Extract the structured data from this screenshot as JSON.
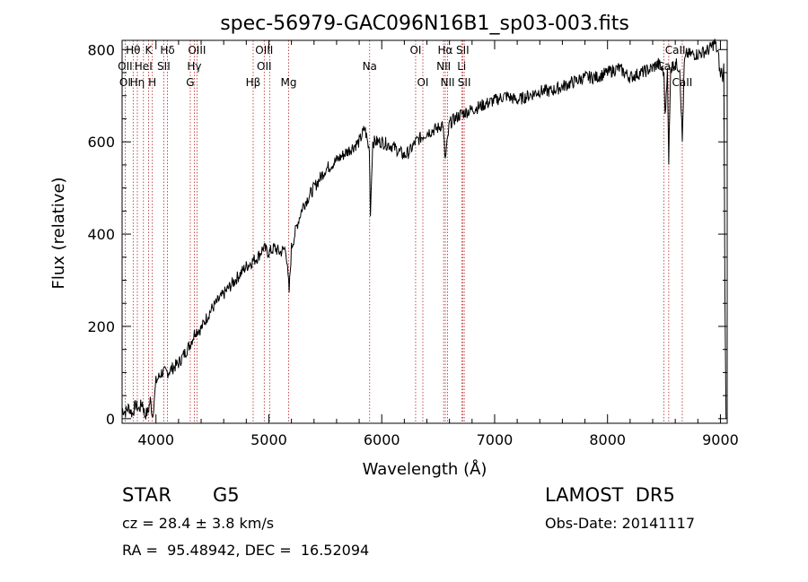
{
  "chart_data": {
    "type": "line",
    "title": "spec-56979-GAC096N16B1_sp03-003.fits",
    "xlabel": "Wavelength (Å)",
    "ylabel": "Flux (relative)",
    "xlim": [
      3700,
      9060
    ],
    "ylim": [
      -10,
      820
    ],
    "xticks": [
      4000,
      5000,
      6000,
      7000,
      8000,
      9000
    ],
    "yticks": [
      0,
      200,
      400,
      600,
      800
    ],
    "grid": false,
    "line_color": "#000000",
    "marker_line_color": "#b22222",
    "series": [
      {
        "values": [
          [
            3700,
            20
          ],
          [
            3730,
            15
          ],
          [
            3760,
            25
          ],
          [
            3790,
            10
          ],
          [
            3820,
            30
          ],
          [
            3850,
            20
          ],
          [
            3880,
            35
          ],
          [
            3900,
            8
          ],
          [
            3930,
            15
          ],
          [
            3950,
            40
          ],
          [
            3970,
            5
          ],
          [
            4000,
            80
          ],
          [
            4050,
            100
          ],
          [
            4100,
            100
          ],
          [
            4150,
            110
          ],
          [
            4200,
            120
          ],
          [
            4250,
            140
          ],
          [
            4300,
            160
          ],
          [
            4350,
            190
          ],
          [
            4400,
            195
          ],
          [
            4450,
            220
          ],
          [
            4500,
            240
          ],
          [
            4600,
            270
          ],
          [
            4700,
            300
          ],
          [
            4800,
            330
          ],
          [
            4900,
            350
          ],
          [
            4950,
            370
          ],
          [
            5000,
            360
          ],
          [
            5050,
            370
          ],
          [
            5100,
            360
          ],
          [
            5150,
            370
          ],
          [
            5180,
            275
          ],
          [
            5200,
            370
          ],
          [
            5250,
            420
          ],
          [
            5300,
            460
          ],
          [
            5400,
            500
          ],
          [
            5500,
            540
          ],
          [
            5600,
            560
          ],
          [
            5700,
            580
          ],
          [
            5800,
            600
          ],
          [
            5850,
            630
          ],
          [
            5890,
            580
          ],
          [
            5900,
            450
          ],
          [
            5920,
            600
          ],
          [
            6000,
            600
          ],
          [
            6100,
            590
          ],
          [
            6200,
            570
          ],
          [
            6250,
            580
          ],
          [
            6300,
            600
          ],
          [
            6400,
            620
          ],
          [
            6500,
            630
          ],
          [
            6540,
            640
          ],
          [
            6563,
            560
          ],
          [
            6600,
            640
          ],
          [
            6700,
            660
          ],
          [
            6800,
            670
          ],
          [
            6900,
            680
          ],
          [
            7000,
            690
          ],
          [
            7100,
            700
          ],
          [
            7200,
            690
          ],
          [
            7300,
            700
          ],
          [
            7400,
            710
          ],
          [
            7500,
            710
          ],
          [
            7600,
            720
          ],
          [
            7700,
            730
          ],
          [
            7800,
            740
          ],
          [
            7900,
            740
          ],
          [
            8000,
            750
          ],
          [
            8100,
            760
          ],
          [
            8200,
            740
          ],
          [
            8300,
            750
          ],
          [
            8400,
            760
          ],
          [
            8450,
            770
          ],
          [
            8500,
            750
          ],
          [
            8510,
            650
          ],
          [
            8530,
            760
          ],
          [
            8542,
            560
          ],
          [
            8560,
            760
          ],
          [
            8600,
            770
          ],
          [
            8640,
            760
          ],
          [
            8662,
            600
          ],
          [
            8680,
            770
          ],
          [
            8700,
            790
          ],
          [
            8800,
            790
          ],
          [
            8900,
            800
          ],
          [
            8950,
            815
          ],
          [
            8980,
            790
          ],
          [
            9000,
            740
          ],
          [
            9010,
            760
          ],
          [
            9020,
            730
          ],
          [
            9030,
            770
          ],
          [
            9040,
            260
          ],
          [
            9050,
            0
          ]
        ]
      }
    ],
    "annotations": [
      {
        "text": "Hθ",
        "x": 3798,
        "row": 0
      },
      {
        "text": "K",
        "x": 3934,
        "row": 0
      },
      {
        "text": "Hδ",
        "x": 4102,
        "row": 0
      },
      {
        "text": "OIII",
        "x": 4363,
        "row": 0
      },
      {
        "text": "OIII",
        "x": 4959,
        "row": 0
      },
      {
        "text": "OI",
        "x": 6300,
        "row": 0
      },
      {
        "text": "Hα",
        "x": 6563,
        "row": 0
      },
      {
        "text": "SII",
        "x": 6717,
        "row": 0
      },
      {
        "text": "CaII",
        "x": 8600,
        "row": 0
      },
      {
        "text": "OII",
        "x": 3727,
        "row": 1
      },
      {
        "text": "HeI",
        "x": 3889,
        "row": 1
      },
      {
        "text": "SII",
        "x": 4069,
        "row": 1
      },
      {
        "text": "Hγ",
        "x": 4340,
        "row": 1
      },
      {
        "text": "OII",
        "x": 4959,
        "row": 1
      },
      {
        "text": "Na",
        "x": 5893,
        "row": 1
      },
      {
        "text": "NII",
        "x": 6548,
        "row": 1
      },
      {
        "text": "Li",
        "x": 6708,
        "row": 1
      },
      {
        "text": "CaII",
        "x": 8525,
        "row": 1
      },
      {
        "text": "OI",
        "x": 3727,
        "row": 2
      },
      {
        "text": "Hη",
        "x": 3835,
        "row": 2
      },
      {
        "text": "H",
        "x": 3968,
        "row": 2
      },
      {
        "text": "G",
        "x": 4304,
        "row": 2
      },
      {
        "text": "Hβ",
        "x": 4861,
        "row": 2
      },
      {
        "text": "Mg",
        "x": 5175,
        "row": 2
      },
      {
        "text": "OI",
        "x": 6364,
        "row": 2
      },
      {
        "text": "NII",
        "x": 6583,
        "row": 2
      },
      {
        "text": "SII",
        "x": 6731,
        "row": 2
      },
      {
        "text": "CaII",
        "x": 8662,
        "row": 2
      }
    ],
    "marker_lines": [
      3727,
      3798,
      3835,
      3889,
      3934,
      3968,
      4069,
      4102,
      4304,
      4340,
      4363,
      4861,
      4959,
      5007,
      5175,
      5893,
      6300,
      6364,
      6548,
      6563,
      6583,
      6708,
      6717,
      6731,
      8498,
      8542,
      8662
    ]
  },
  "info": {
    "class": "STAR",
    "subclass": "G5",
    "cz": "cz = 28.4 ± 3.8 km/s",
    "radec": "RA =  95.48942, DEC =  16.52094",
    "survey": "LAMOST  DR5",
    "obs_date": "Obs-Date: 20141117"
  }
}
